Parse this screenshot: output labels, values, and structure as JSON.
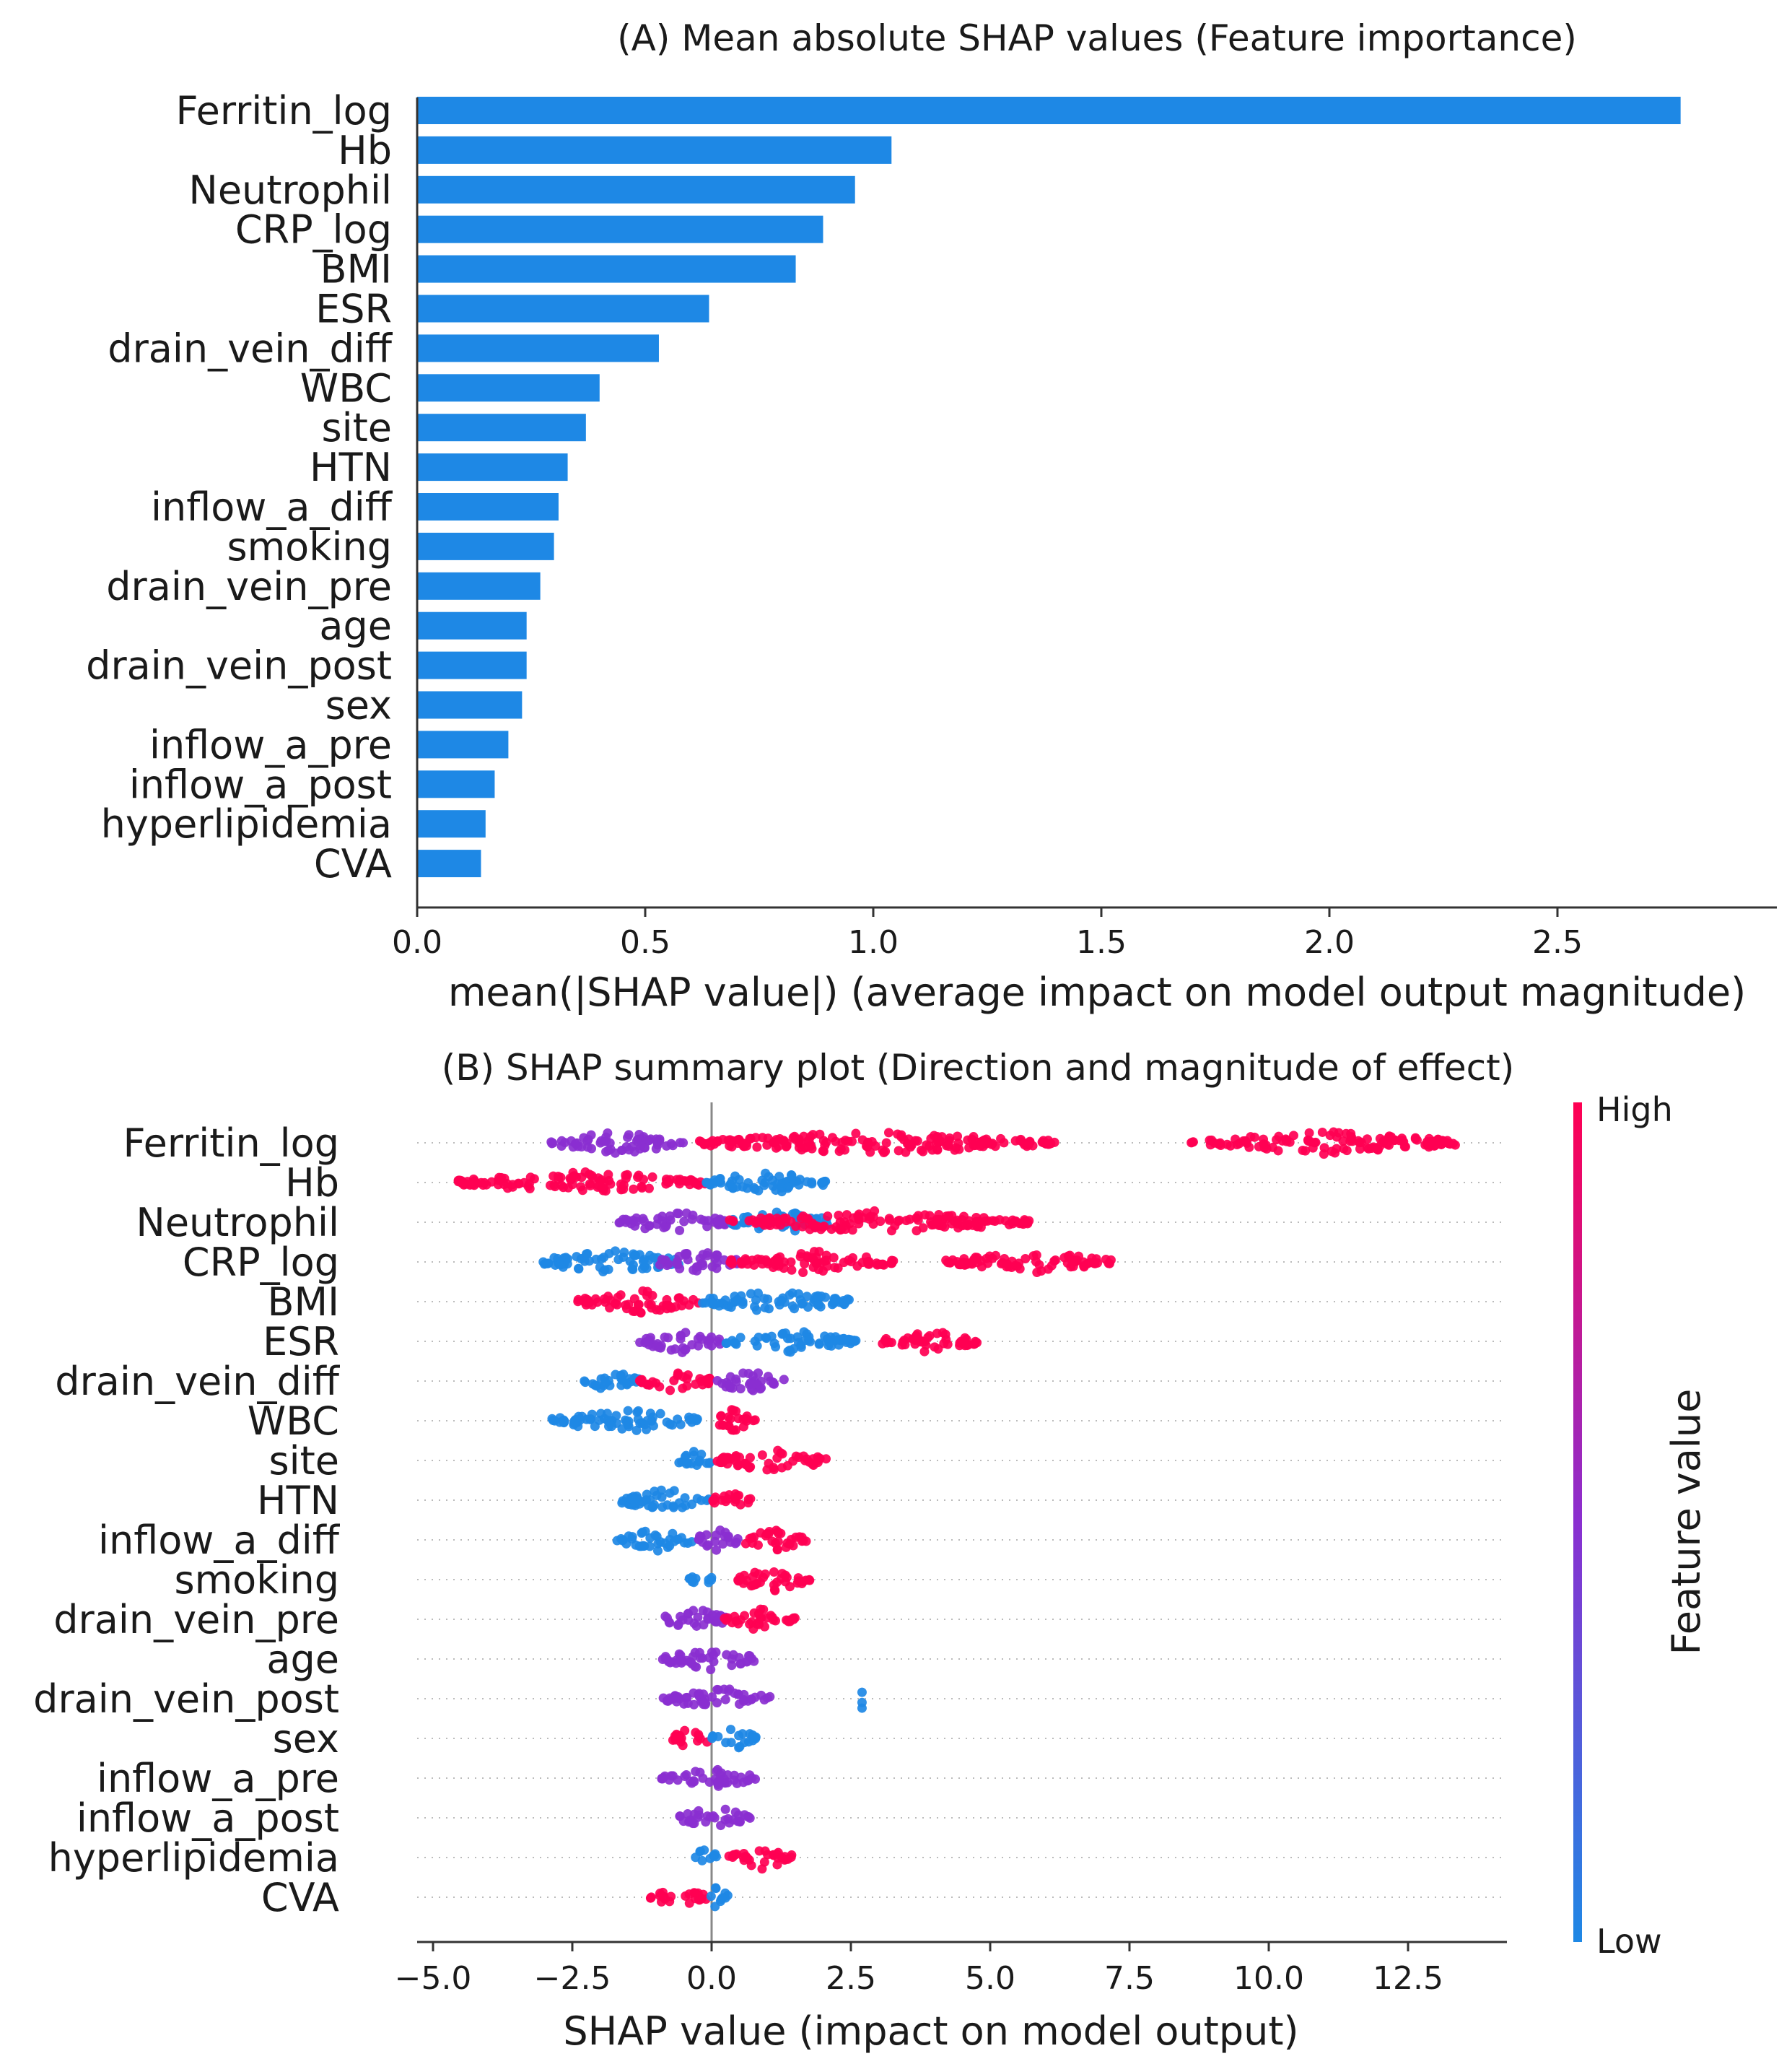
{
  "chart_data": [
    {
      "type": "bar",
      "orientation": "horizontal",
      "title": "(A) Mean absolute SHAP values (Feature importance)",
      "xlabel": "mean(|SHAP value|) (average impact on model output magnitude)",
      "ylabel": "",
      "xlim": [
        0,
        2.9
      ],
      "xticks": [
        "0.0",
        "0.5",
        "1.0",
        "1.5",
        "2.0",
        "2.5"
      ],
      "xtick_values": [
        0,
        0.5,
        1.0,
        1.5,
        2.0,
        2.5
      ],
      "categories": [
        "Ferritin_log",
        "Hb",
        "Neutrophil",
        "CRP_log",
        "BMI",
        "ESR",
        "drain_vein_diff",
        "WBC",
        "site",
        "HTN",
        "inflow_a_diff",
        "smoking",
        "drain_vein_pre",
        "age",
        "drain_vein_post",
        "sex",
        "inflow_a_pre",
        "inflow_a_post",
        "hyperlipidemia",
        "CVA"
      ],
      "values": [
        2.77,
        1.04,
        0.96,
        0.89,
        0.83,
        0.64,
        0.53,
        0.4,
        0.37,
        0.33,
        0.31,
        0.3,
        0.27,
        0.24,
        0.24,
        0.23,
        0.2,
        0.17,
        0.15,
        0.14
      ],
      "bar_color": "#1e88e5",
      "grid": false
    },
    {
      "type": "scatter",
      "subtype": "beeswarm",
      "title": "(B) SHAP summary plot (Direction and magnitude of effect)",
      "xlabel": "SHAP value (impact on model output)",
      "ylabel": "",
      "xlim": [
        -5.3,
        14.3
      ],
      "xticks": [
        "−5.0",
        "−2.5",
        "0.0",
        "2.5",
        "5.0",
        "7.5",
        "10.0",
        "12.5"
      ],
      "xtick_values": [
        -5,
        -2.5,
        0,
        2.5,
        5,
        7.5,
        10,
        12.5
      ],
      "categories": [
        "Ferritin_log",
        "Hb",
        "Neutrophil",
        "CRP_log",
        "BMI",
        "ESR",
        "drain_vein_diff",
        "WBC",
        "site",
        "HTN",
        "inflow_a_diff",
        "smoking",
        "drain_vein_pre",
        "age",
        "drain_vein_post",
        "sex",
        "inflow_a_pre",
        "inflow_a_post",
        "hyperlipidemia",
        "CVA"
      ],
      "features": [
        {
          "name": "Ferritin_log",
          "min": -3.0,
          "max": 13.4,
          "clusters": [
            [
              -2.9,
              -0.5,
              "mid"
            ],
            [
              -0.3,
              6.2,
              "high"
            ],
            [
              8.6,
              13.4,
              "high"
            ]
          ]
        },
        {
          "name": "Hb",
          "min": -4.6,
          "max": 2.2,
          "clusters": [
            [
              -4.6,
              -0.1,
              "high"
            ],
            [
              -0.1,
              2.2,
              "low"
            ]
          ]
        },
        {
          "name": "Neutrophil",
          "min": -1.7,
          "max": 5.7,
          "clusters": [
            [
              -1.7,
              0.3,
              "mid"
            ],
            [
              0.3,
              2.2,
              "low"
            ],
            [
              0.3,
              5.7,
              "high"
            ]
          ]
        },
        {
          "name": "CRP_log",
          "min": -3.1,
          "max": 7.2,
          "clusters": [
            [
              -3.1,
              -0.5,
              "low"
            ],
            [
              -1.0,
              0.5,
              "mid"
            ],
            [
              0.3,
              3.3,
              "high"
            ],
            [
              4.2,
              7.2,
              "high"
            ]
          ]
        },
        {
          "name": "BMI",
          "min": -2.4,
          "max": 2.5,
          "clusters": [
            [
              -2.4,
              -0.2,
              "high"
            ],
            [
              -0.2,
              2.5,
              "low"
            ]
          ]
        },
        {
          "name": "ESR",
          "min": -1.3,
          "max": 4.8,
          "clusters": [
            [
              -1.3,
              0.2,
              "mid"
            ],
            [
              0.2,
              2.6,
              "low"
            ],
            [
              3.0,
              4.8,
              "high"
            ]
          ]
        },
        {
          "name": "drain_vein_diff",
          "min": -2.3,
          "max": 1.3,
          "clusters": [
            [
              -2.3,
              -1.3,
              "low"
            ],
            [
              -1.3,
              0.0,
              "high"
            ],
            [
              0.0,
              1.3,
              "mid"
            ]
          ]
        },
        {
          "name": "WBC",
          "min": -2.9,
          "max": 0.8,
          "clusters": [
            [
              -2.9,
              -0.2,
              "low"
            ],
            [
              -0.1,
              0.8,
              "high"
            ]
          ]
        },
        {
          "name": "site",
          "min": -0.6,
          "max": 2.1,
          "clusters": [
            [
              -0.6,
              0.0,
              "low"
            ],
            [
              0.1,
              2.1,
              "high"
            ]
          ]
        },
        {
          "name": "HTN",
          "min": -1.7,
          "max": 0.7,
          "clusters": [
            [
              -1.7,
              0.0,
              "low"
            ],
            [
              0.0,
              0.7,
              "high"
            ]
          ]
        },
        {
          "name": "inflow_a_diff",
          "min": -1.7,
          "max": 1.7,
          "clusters": [
            [
              -1.7,
              -0.3,
              "low"
            ],
            [
              -0.3,
              0.5,
              "mid"
            ],
            [
              0.5,
              1.7,
              "high"
            ]
          ]
        },
        {
          "name": "smoking",
          "min": -0.4,
          "max": 1.8,
          "clusters": [
            [
              -0.4,
              0.0,
              "low"
            ],
            [
              0.4,
              1.8,
              "high"
            ]
          ]
        },
        {
          "name": "drain_vein_pre",
          "min": -0.9,
          "max": 1.5,
          "clusters": [
            [
              -0.9,
              0.3,
              "mid"
            ],
            [
              0.2,
              1.5,
              "high"
            ]
          ]
        },
        {
          "name": "age",
          "min": -0.9,
          "max": 0.8,
          "clusters": [
            [
              -0.9,
              0.8,
              "mid"
            ]
          ]
        },
        {
          "name": "drain_vein_post",
          "min": -0.9,
          "max": 2.7,
          "clusters": [
            [
              -0.9,
              1.1,
              "mid"
            ],
            [
              2.7,
              2.7,
              "low"
            ]
          ]
        },
        {
          "name": "sex",
          "min": -0.7,
          "max": 0.8,
          "clusters": [
            [
              -0.7,
              0.0,
              "high"
            ],
            [
              0.0,
              0.8,
              "low"
            ]
          ]
        },
        {
          "name": "inflow_a_pre",
          "min": -0.9,
          "max": 0.8,
          "clusters": [
            [
              -0.9,
              0.8,
              "mid"
            ]
          ]
        },
        {
          "name": "inflow_a_post",
          "min": -0.6,
          "max": 0.7,
          "clusters": [
            [
              -0.6,
              0.7,
              "mid"
            ]
          ]
        },
        {
          "name": "hyperlipidemia",
          "min": -0.3,
          "max": 1.5,
          "clusters": [
            [
              -0.3,
              0.1,
              "low"
            ],
            [
              0.3,
              1.5,
              "high"
            ]
          ]
        },
        {
          "name": "CVA",
          "min": -1.1,
          "max": 0.3,
          "clusters": [
            [
              -1.1,
              -0.1,
              "high"
            ],
            [
              -0.1,
              0.3,
              "low"
            ]
          ]
        }
      ],
      "colorbar": {
        "label": "Feature value",
        "high_label": "High",
        "low_label": "Low",
        "colors": {
          "high": "#ff0052",
          "mid": "#8a2fd0",
          "low": "#1e88e5"
        }
      },
      "grid": "dotted horizontal lines per feature"
    }
  ]
}
